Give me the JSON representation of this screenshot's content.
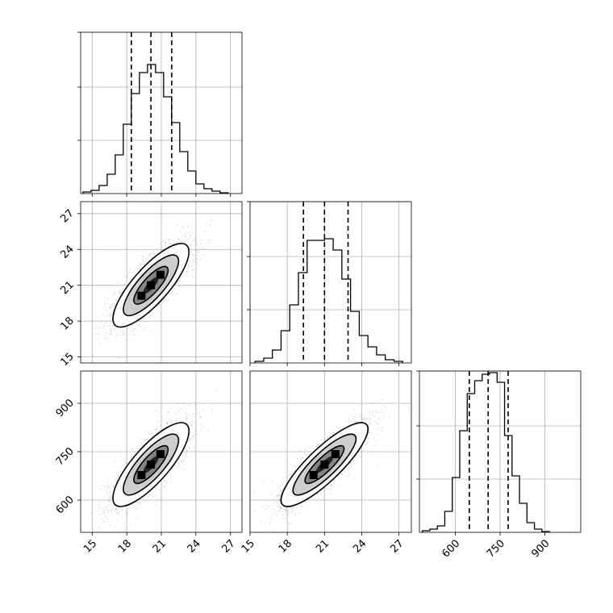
{
  "figure": {
    "background": "#ffffff",
    "grid": true,
    "grid_color": "#b0b0b0",
    "line_color": "#000000",
    "quantile_line_style": "dashed",
    "point_color": "#808080"
  },
  "chart_data": [
    {
      "panel": "hist-x0",
      "type": "histogram",
      "xlim": [
        14,
        28
      ],
      "ylim": [
        0,
        1
      ],
      "yticks_unlabeled": [
        0.33,
        0.66,
        1.0
      ],
      "bins": [
        14.2,
        14.9,
        15.6,
        16.3,
        17.0,
        17.7,
        18.4,
        19.1,
        19.8,
        20.5,
        21.2,
        21.9,
        22.6,
        23.3,
        24.0,
        24.7,
        25.4,
        26.1,
        26.8
      ],
      "counts": [
        0.01,
        0.02,
        0.05,
        0.12,
        0.24,
        0.43,
        0.62,
        0.75,
        0.8,
        0.75,
        0.6,
        0.44,
        0.26,
        0.14,
        0.06,
        0.03,
        0.015,
        0.005
      ],
      "quantiles": [
        18.4,
        20.1,
        21.9
      ]
    },
    {
      "panel": "hist-x1",
      "type": "histogram",
      "xlim": [
        15,
        28
      ],
      "ylim": [
        0,
        1
      ],
      "yticks_unlabeled": [
        0.33,
        0.66,
        1.0
      ],
      "bins": [
        15.4,
        16.1,
        16.8,
        17.5,
        18.2,
        18.9,
        19.6,
        20.3,
        21.0,
        21.7,
        22.4,
        23.1,
        23.8,
        24.5,
        25.2,
        25.9,
        26.6,
        27.3
      ],
      "counts": [
        0.01,
        0.03,
        0.08,
        0.2,
        0.36,
        0.56,
        0.76,
        0.76,
        0.77,
        0.7,
        0.52,
        0.32,
        0.17,
        0.1,
        0.05,
        0.02,
        0.01
      ],
      "quantiles": [
        19.3,
        21.0,
        22.9
      ]
    },
    {
      "panel": "hist-x2",
      "type": "histogram",
      "xlim": [
        480,
        1020
      ],
      "ylim": [
        0,
        1
      ],
      "yticks_unlabeled": [
        0.33,
        0.66,
        1.0
      ],
      "bins": [
        490,
        515,
        540,
        565,
        590,
        615,
        640,
        665,
        690,
        715,
        740,
        765,
        790,
        815,
        840,
        865,
        890,
        915
      ],
      "counts": [
        0.01,
        0.02,
        0.04,
        0.13,
        0.34,
        0.63,
        0.86,
        0.94,
        0.98,
        0.99,
        0.93,
        0.6,
        0.35,
        0.18,
        0.06,
        0.02,
        0.005
      ],
      "quantiles": [
        647,
        710,
        777
      ]
    },
    {
      "panel": "scatter-x0-x1",
      "type": "density-contour",
      "xlim": [
        14,
        28
      ],
      "ylim": [
        14.5,
        28
      ],
      "center": [
        20.1,
        21.0
      ],
      "sigma": [
        1.65,
        1.75
      ],
      "correlation": 0.8,
      "yticks": [
        15,
        18,
        21,
        24,
        27
      ],
      "ytick_labels": [
        "15",
        "18",
        "21",
        "24",
        "27"
      ]
    },
    {
      "panel": "scatter-x0-x2",
      "type": "density-contour",
      "xlim": [
        14,
        28
      ],
      "ylim": [
        500,
        1000
      ],
      "center": [
        20.1,
        710
      ],
      "sigma": [
        1.65,
        65
      ],
      "correlation": 0.8,
      "xticks": [
        15,
        18,
        21,
        24,
        27
      ],
      "xtick_labels": [
        "15",
        "18",
        "21",
        "24",
        "27"
      ],
      "yticks": [
        600,
        750,
        900
      ],
      "ytick_labels": [
        "600",
        "750",
        "900"
      ]
    },
    {
      "panel": "scatter-x1-x2",
      "type": "density-contour",
      "xlim": [
        15,
        28
      ],
      "ylim": [
        500,
        1000
      ],
      "center": [
        21.0,
        710
      ],
      "sigma": [
        1.75,
        65
      ],
      "correlation": 0.85,
      "xticks": [
        15,
        18,
        21,
        24,
        27
      ],
      "xtick_labels": [
        "15",
        "18",
        "21",
        "24",
        "27"
      ]
    },
    {
      "panel": "hist-x2-axis",
      "type": "axis",
      "xticks": [
        600,
        750,
        900
      ],
      "xtick_labels": [
        "600",
        "750",
        "900"
      ]
    }
  ]
}
